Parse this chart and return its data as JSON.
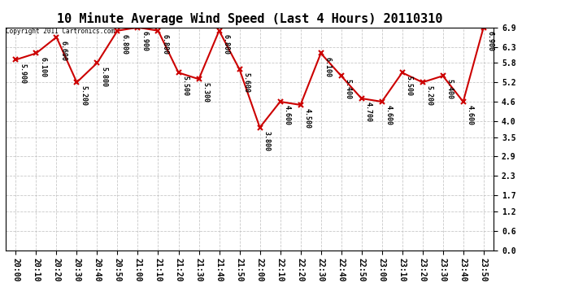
{
  "title": "10 Minute Average Wind Speed (Last 4 Hours) 20110310",
  "copyright_text": "Copyright 2011 Cartronics.com",
  "x_labels": [
    "20:00",
    "20:10",
    "20:20",
    "20:30",
    "20:40",
    "20:50",
    "21:00",
    "21:10",
    "21:20",
    "21:30",
    "21:40",
    "21:50",
    "22:00",
    "22:10",
    "22:20",
    "22:30",
    "22:40",
    "22:50",
    "23:00",
    "23:10",
    "23:20",
    "23:30",
    "23:40",
    "23:50"
  ],
  "y_values": [
    5.9,
    6.1,
    6.6,
    5.2,
    5.8,
    6.8,
    6.9,
    6.8,
    5.5,
    5.3,
    6.8,
    5.6,
    3.8,
    4.6,
    4.5,
    6.1,
    5.4,
    4.7,
    4.6,
    5.5,
    5.2,
    5.4,
    4.6,
    6.9
  ],
  "point_labels": [
    "5.900",
    "6.100",
    "6.600",
    "5.200",
    "5.800",
    "6.800",
    "6.900",
    "6.800",
    "5.500",
    "5.300",
    "6.800",
    "5.600",
    "3.800",
    "4.600",
    "4.500",
    "6.100",
    "5.400",
    "4.700",
    "4.600",
    "5.500",
    "5.200",
    "5.400",
    "4.600",
    "6.900"
  ],
  "line_color": "#cc0000",
  "marker_color": "#cc0000",
  "bg_color": "#ffffff",
  "grid_color": "#bbbbbb",
  "ylim": [
    0.0,
    6.9
  ],
  "yticks": [
    0.0,
    0.6,
    1.2,
    1.7,
    2.3,
    2.9,
    3.5,
    4.0,
    4.6,
    5.2,
    5.8,
    6.3,
    6.9
  ],
  "title_fontsize": 11,
  "tick_fontsize": 7,
  "point_label_fontsize": 6
}
